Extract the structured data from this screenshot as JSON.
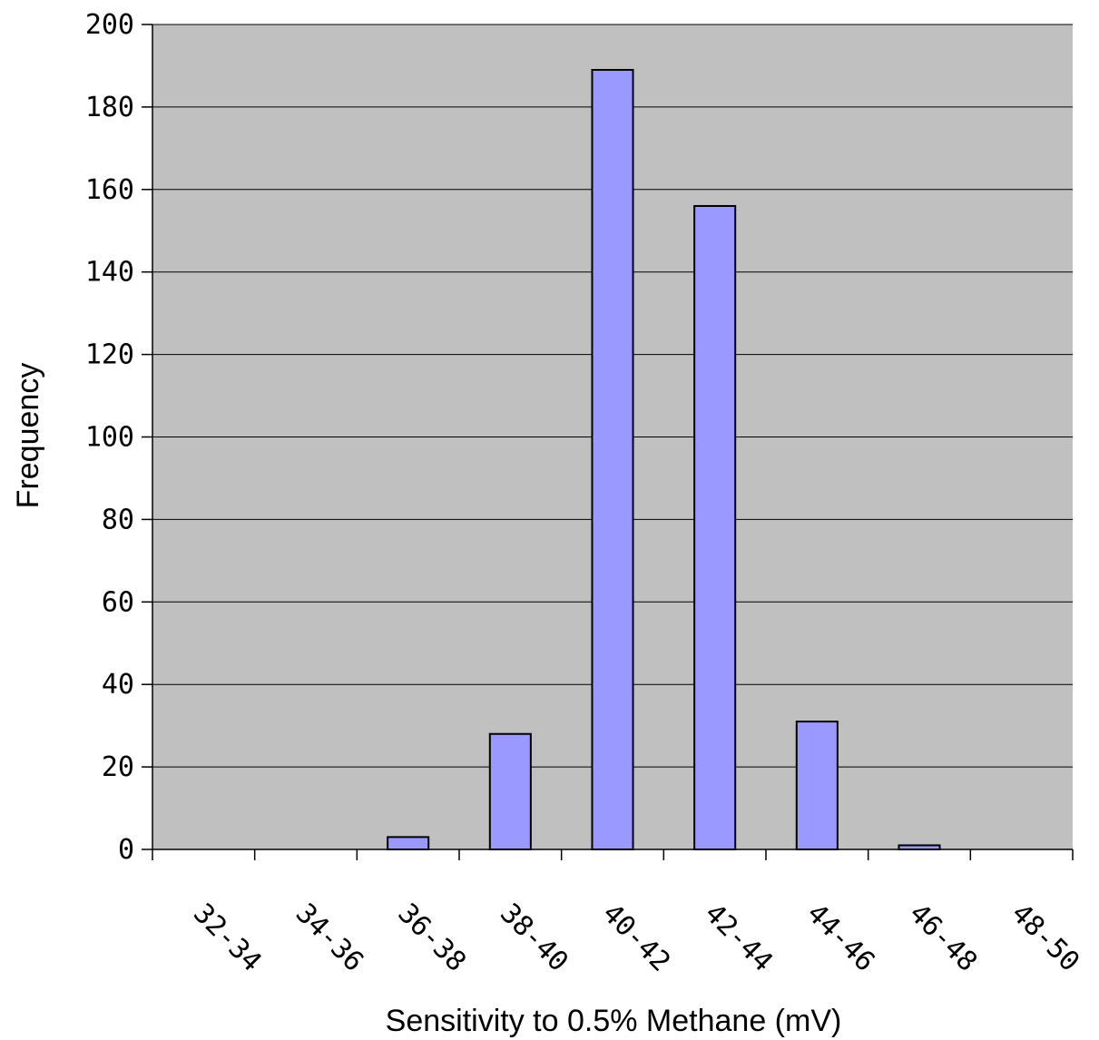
{
  "chart_data": {
    "type": "bar",
    "title": "",
    "xlabel": "Sensitivity to 0.5% Methane (mV)",
    "ylabel": "Frequency",
    "categories": [
      "32-34",
      "34-36",
      "36-38",
      "38-40",
      "40-42",
      "42-44",
      "44-46",
      "46-48",
      "48-50"
    ],
    "values": [
      0,
      0,
      3,
      28,
      189,
      156,
      31,
      1,
      0
    ],
    "ylim": [
      0,
      200
    ],
    "yticks": [
      "0",
      "20",
      "40",
      "60",
      "80",
      "100",
      "120",
      "140",
      "160",
      "180",
      "200"
    ],
    "grid": true,
    "legend": false,
    "colors": {
      "plot_background": "#c0c0c0",
      "bar_fill": "#9999ff",
      "bar_stroke": "#000000",
      "gridline": "#000000"
    }
  }
}
